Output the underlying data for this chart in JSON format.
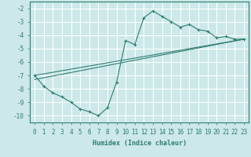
{
  "xlabel": "Humidex (Indice chaleur)",
  "xlim": [
    -0.5,
    23.5
  ],
  "ylim": [
    -10.5,
    -1.5
  ],
  "yticks": [
    -10,
    -9,
    -8,
    -7,
    -6,
    -5,
    -4,
    -3,
    -2
  ],
  "xticks": [
    0,
    1,
    2,
    3,
    4,
    5,
    6,
    7,
    8,
    9,
    10,
    11,
    12,
    13,
    14,
    15,
    16,
    17,
    18,
    19,
    20,
    21,
    22,
    23
  ],
  "background_color": "#cce8e8",
  "line_color": "#2e7d72",
  "grid_color": "#ffffff",
  "curve1_x": [
    0,
    1,
    2,
    3,
    4,
    5,
    6,
    7,
    8,
    9,
    10,
    11,
    12,
    13,
    14,
    15,
    16,
    17,
    18,
    19,
    20,
    21,
    22,
    23
  ],
  "curve1_y": [
    -7.0,
    -7.8,
    -8.3,
    -8.6,
    -9.0,
    -9.5,
    -9.7,
    -10.0,
    -9.4,
    -7.5,
    -4.4,
    -4.7,
    -2.7,
    -2.2,
    -2.6,
    -3.0,
    -3.4,
    -3.2,
    -3.6,
    -3.7,
    -4.2,
    -4.1,
    -4.3,
    -4.3
  ],
  "curve2_x": [
    0,
    23
  ],
  "curve2_y": [
    -7.3,
    -4.3
  ],
  "curve3_x": [
    0,
    23
  ],
  "curve3_y": [
    -7.0,
    -4.3
  ],
  "marker": "+"
}
